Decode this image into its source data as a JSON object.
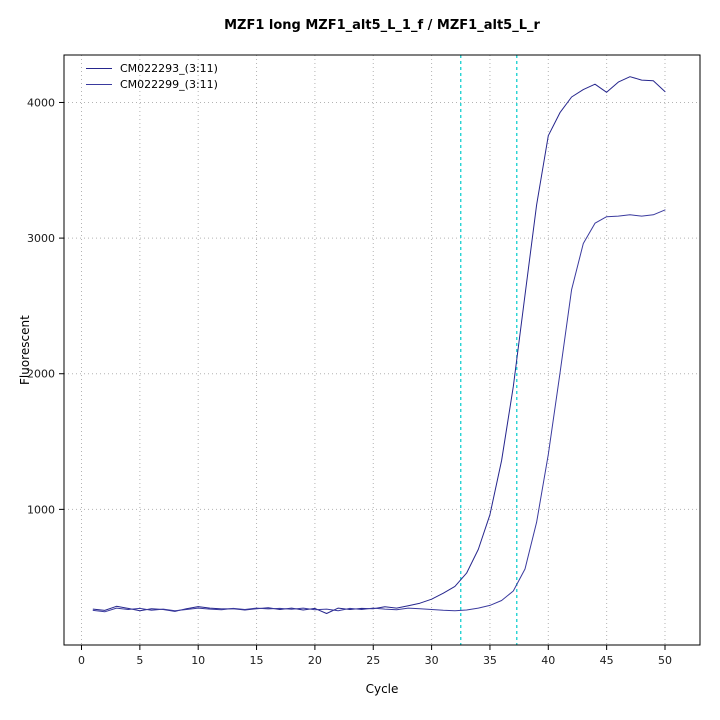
{
  "chart_data": {
    "type": "line",
    "title": "MZF1 long MZF1_alt5_L_1_f / MZF1_alt5_L_r",
    "xlabel": "Cycle",
    "ylabel": "Fluorescent",
    "xlim": [
      -1.5,
      53
    ],
    "ylim": [
      0,
      4350
    ],
    "x_ticks": [
      0,
      5,
      10,
      15,
      20,
      25,
      30,
      35,
      40,
      45,
      50
    ],
    "y_ticks": [
      1000,
      2000,
      3000,
      4000
    ],
    "grid": true,
    "grid_color": "#b3b3b3",
    "axis_color": "#000000",
    "legend_position": "top-left",
    "threshold_lines": [
      {
        "x": 32.5,
        "color": "#00CCCC"
      },
      {
        "x": 37.3,
        "color": "#00CCCC"
      }
    ],
    "series": [
      {
        "name": "CM022293_(3:11)",
        "color": "#26268d",
        "x_start": 1,
        "values": [
          265,
          255,
          285,
          270,
          252,
          268,
          262,
          248,
          268,
          283,
          272,
          266,
          268,
          258,
          268,
          275,
          262,
          272,
          258,
          270,
          232,
          272,
          262,
          270,
          268,
          282,
          272,
          290,
          308,
          338,
          382,
          432,
          530,
          705,
          960,
          1360,
          1905,
          2580,
          3245,
          3755,
          3925,
          4040,
          4095,
          4135,
          4075,
          4150,
          4190,
          4165,
          4160,
          4080
        ]
      },
      {
        "name": "CM022299_(3:11)",
        "color": "#3a3a9e",
        "x_start": 1,
        "values": [
          255,
          245,
          272,
          262,
          270,
          256,
          265,
          252,
          262,
          272,
          265,
          260,
          270,
          262,
          272,
          266,
          270,
          264,
          272,
          260,
          265,
          252,
          270,
          262,
          272,
          265,
          260,
          272,
          268,
          262,
          256,
          252,
          258,
          272,
          292,
          328,
          398,
          560,
          905,
          1405,
          2005,
          2620,
          2960,
          3110,
          3158,
          3162,
          3172,
          3162,
          3172,
          3208
        ]
      }
    ]
  }
}
